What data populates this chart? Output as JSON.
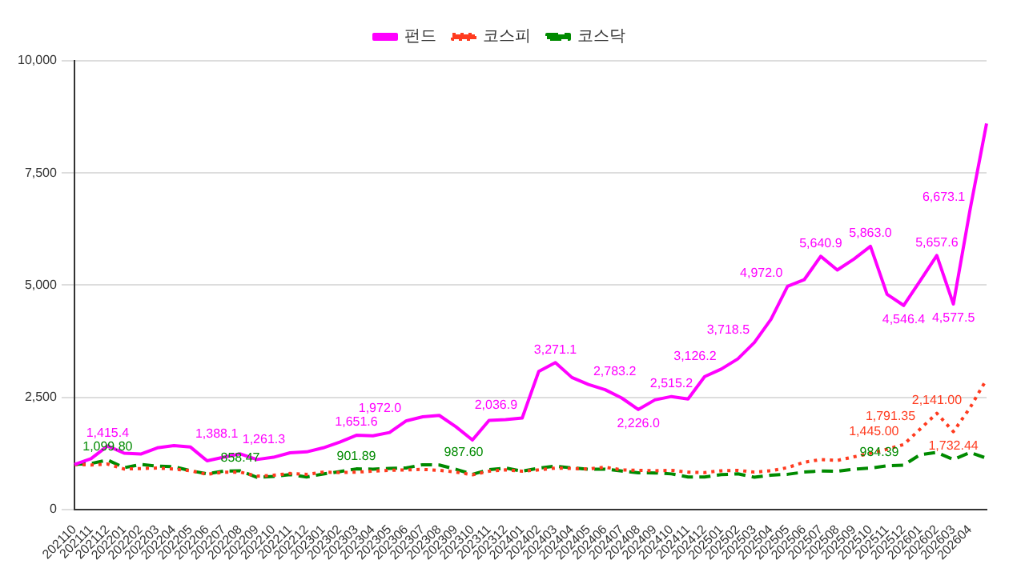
{
  "chart_data": {
    "type": "line",
    "categories": [
      "202110",
      "202111",
      "202112",
      "202201",
      "202202",
      "202203",
      "202204",
      "202205",
      "202206",
      "202207",
      "202208",
      "202209",
      "202210",
      "202211",
      "202212",
      "202301",
      "202302",
      "202303",
      "202304",
      "202305",
      "202306",
      "202307",
      "202308",
      "202309",
      "202310",
      "202311",
      "202312",
      "202401",
      "202402",
      "202403",
      "202404",
      "202405",
      "202406",
      "202407",
      "202408",
      "202409",
      "202410",
      "202411",
      "202412",
      "202501",
      "202502",
      "202503",
      "202504",
      "202505",
      "202506",
      "202507",
      "202508",
      "202509",
      "202510",
      "202511",
      "202512",
      "202601",
      "202602",
      "202603",
      "202604",
      null
    ],
    "ylim": [
      0,
      10000
    ],
    "yticks": [
      0,
      {
        "value": 2500,
        "label": "2,500"
      },
      {
        "value": 5000,
        "label": "5,000"
      },
      {
        "value": 7500,
        "label": "7,500"
      },
      {
        "value": 10000,
        "label": "10,000"
      }
    ],
    "grid": "y",
    "legend": "top",
    "marker": "none",
    "series": [
      {
        "name": "펀드",
        "color": "#ff00ff",
        "line_style": "solid",
        "values": [
          1000.0,
          1130.0,
          1415.4,
          1251.0,
          1232.2,
          1371.0,
          1421.0,
          1388.1,
          1081.0,
          1161.0,
          1237.0,
          1111.0,
          1161.0,
          1261.3,
          1281.0,
          1371.0,
          1500.0,
          1651.6,
          1641.0,
          1712.4,
          1972.0,
          2062.0,
          2093.8,
          1842.9,
          1544.8,
          1982.0,
          2000.0,
          2036.9,
          3076.3,
          3271.1,
          2939.4,
          2783.2,
          2667.8,
          2482.5,
          2226.0,
          2440.0,
          2515.2,
          2459.9,
          2960.0,
          3126.2,
          3354.7,
          3718.5,
          4235.4,
          4972.0,
          5117.8,
          5640.9,
          5335.3,
          5580.4,
          5863.0,
          4794.4,
          4546.4,
          5095.4,
          5657.6,
          4577.5,
          6673.1,
          8600.0
        ],
        "value_labels": [
          null,
          null,
          "1,415.4",
          null,
          null,
          null,
          null,
          "1,388.1",
          null,
          null,
          null,
          null,
          null,
          "1,261.3",
          null,
          null,
          null,
          "1,651.6",
          null,
          null,
          "1,972.0",
          null,
          null,
          null,
          null,
          null,
          null,
          "2,036.9",
          null,
          "3,271.1",
          null,
          "2,783.2",
          null,
          null,
          "2,226.0",
          null,
          "2,515.2",
          null,
          null,
          "3,126.2",
          null,
          "3,718.5",
          null,
          "4,972.0",
          null,
          "5,640.9",
          null,
          null,
          "5,863.0",
          null,
          "4,546.4",
          null,
          "5,657.6",
          "4,577.5",
          "6,673.1",
          null
        ]
      },
      {
        "name": "코스피",
        "color": "#ff3b1f",
        "line_style": "dotted",
        "values": [
          1000,
          990,
          1010,
          900,
          910,
          920,
          900,
          860,
          780,
          830,
          830,
          740,
          760,
          800,
          780,
          830,
          820,
          830,
          850,
          870,
          880,
          890,
          870,
          830,
          770,
          850,
          880,
          850,
          880,
          920,
          910,
          900,
          940,
          880,
          870,
          860,
          870,
          830,
          820,
          860,
          870,
          830,
          860,
          930,
          1050,
          1110,
          1090,
          1170,
          1250,
          1340,
          1445.0,
          1791.35,
          2141.0,
          1732.44,
          2262.6,
          2900
        ],
        "value_labels": [
          null,
          null,
          null,
          null,
          null,
          null,
          null,
          null,
          null,
          null,
          null,
          null,
          null,
          null,
          null,
          null,
          null,
          null,
          null,
          null,
          null,
          null,
          null,
          null,
          null,
          null,
          null,
          null,
          null,
          null,
          null,
          null,
          null,
          null,
          null,
          null,
          null,
          null,
          null,
          null,
          null,
          null,
          null,
          null,
          null,
          null,
          null,
          null,
          null,
          null,
          "1,445.00",
          "1,791.35",
          "2,141.00",
          "1,732.44",
          null,
          null
        ]
      },
      {
        "name": "코스닥",
        "color": "#008a00",
        "line_style": "dashed",
        "values": [
          1001,
          1021,
          1099.8,
          928.93,
          1000,
          962,
          950.23,
          860,
          792.85,
          854,
          858.47,
          715,
          734,
          775,
          722,
          787,
          841,
          901.89,
          896,
          911,
          923,
          995,
          987.6,
          894,
          782,
          884,
          921,
          850,
          917,
          963,
          924,
          893,
          897,
          854,
          816,
          812,
          790,
          721,
          721,
          774,
          791,
          715,
          762,
          781,
          831,
          856,
          847,
          895,
          919,
          970,
          984.39,
          1220,
          1268.71,
          1110,
          1268,
          1140
        ],
        "value_labels": [
          null,
          null,
          "1,099.80",
          null,
          null,
          null,
          null,
          null,
          null,
          null,
          "858.47",
          null,
          null,
          null,
          null,
          null,
          null,
          "901.89",
          null,
          null,
          null,
          null,
          "987.60",
          null,
          null,
          null,
          null,
          null,
          null,
          null,
          null,
          null,
          null,
          null,
          null,
          null,
          null,
          null,
          null,
          null,
          null,
          null,
          null,
          null,
          null,
          null,
          null,
          null,
          null,
          null,
          "984.39",
          null,
          null,
          null,
          null,
          null
        ]
      }
    ]
  }
}
